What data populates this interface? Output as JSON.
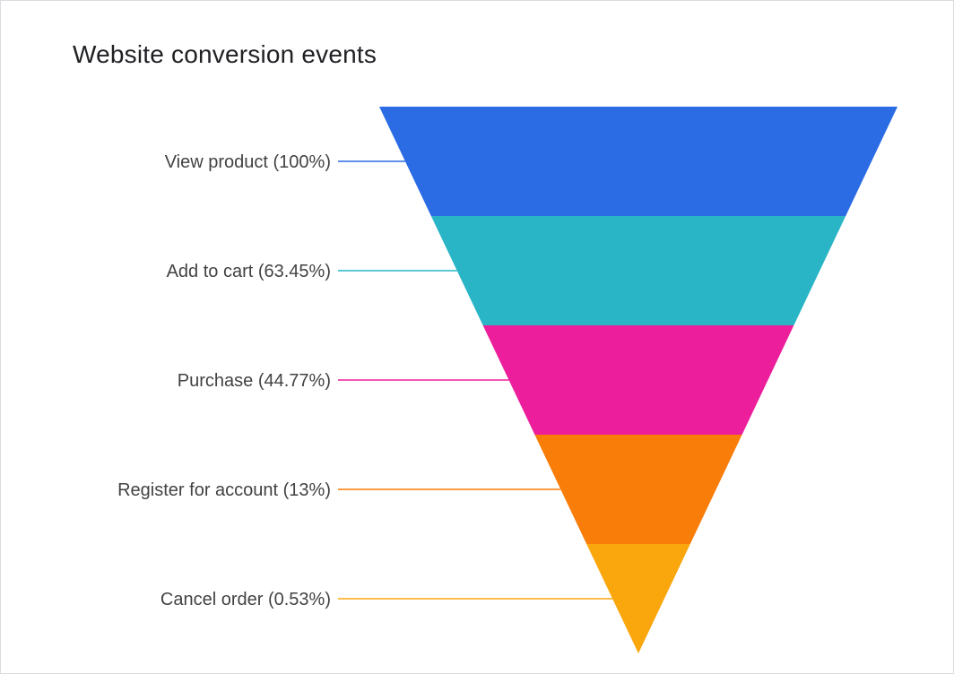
{
  "chart_data": {
    "type": "funnel",
    "title": "Website conversion events",
    "orientation": "inverted-pyramid",
    "layout": "equal stage heights, apex at bottom center, labels on left with colored leader lines",
    "legend_position": "none",
    "stages": [
      {
        "label": "View product",
        "percent": 100,
        "display": "View product (100%)",
        "color": "#2B6CE5"
      },
      {
        "label": "Add to cart",
        "percent": 63.45,
        "display": "Add to cart (63.45%)",
        "color": "#29B5C6"
      },
      {
        "label": "Purchase",
        "percent": 44.77,
        "display": "Purchase (44.77%)",
        "color": "#ED1E9B"
      },
      {
        "label": "Register for account",
        "percent": 13,
        "display": "Register for account (13%)",
        "color": "#F87D09"
      },
      {
        "label": "Cancel order",
        "percent": 0.53,
        "display": "Cancel order (0.53%)",
        "color": "#FAA60D"
      }
    ],
    "label_text_color": "#424242",
    "title_text_color": "#202124",
    "background_color": "#FFFFFF"
  }
}
